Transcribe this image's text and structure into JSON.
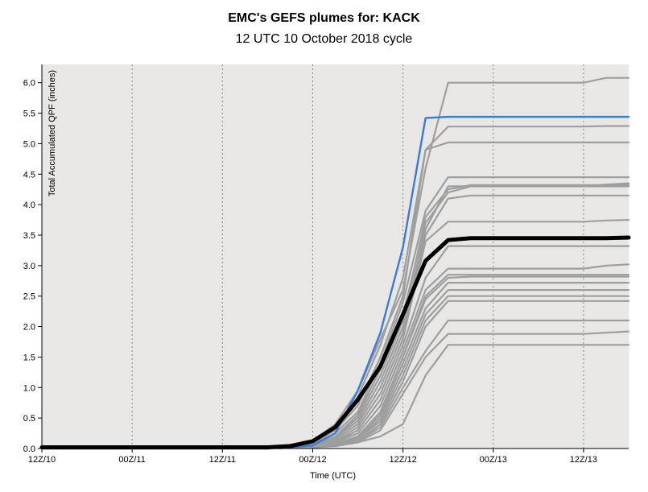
{
  "header": {
    "title": "EMC's GEFS plumes for: KACK",
    "subtitle": "12 UTC 10 October 2018 cycle"
  },
  "colors": {
    "plot_background": "#e8e7e6",
    "member_line": "#9e9e9e",
    "mean_line": "#000000",
    "highlight_line": "#3a7bd5",
    "gridline": "#888888"
  },
  "chart_data": {
    "type": "line",
    "title": "EMC's GEFS plumes for: KACK",
    "subtitle": "12 UTC 10 October 2018 cycle",
    "xlabel": "Time (UTC)",
    "ylabel": "Total Accumulated QPF (inches)",
    "x_unit": "forecast hour",
    "xlim": [
      0,
      78
    ],
    "ylim": [
      0,
      6.3
    ],
    "grid": "vertical dotted at each tick label",
    "x_ticks": [
      {
        "x": 0,
        "label": "12Z/10"
      },
      {
        "x": 12,
        "label": "00Z/11"
      },
      {
        "x": 24,
        "label": "12Z/11"
      },
      {
        "x": 36,
        "label": "00Z/12"
      },
      {
        "x": 48,
        "label": "12Z/12"
      },
      {
        "x": 60,
        "label": "00Z/13"
      },
      {
        "x": 72,
        "label": "12Z/13"
      }
    ],
    "y_ticks": [
      {
        "y": 0,
        "label": "0.0"
      },
      {
        "y": 0.5,
        "label": "0.5"
      },
      {
        "y": 1.0,
        "label": "1.0"
      },
      {
        "y": 1.5,
        "label": "1.5"
      },
      {
        "y": 2.0,
        "label": "2.0"
      },
      {
        "y": 2.5,
        "label": "2.5"
      },
      {
        "y": 3.0,
        "label": "3.0"
      },
      {
        "y": 3.5,
        "label": "3.5"
      },
      {
        "y": 4.0,
        "label": "4.0"
      },
      {
        "y": 4.5,
        "label": "4.5"
      },
      {
        "y": 5.0,
        "label": "5.0"
      },
      {
        "y": 5.5,
        "label": "5.5"
      },
      {
        "y": 6.0,
        "label": "6.0"
      }
    ],
    "x": [
      0,
      3,
      6,
      9,
      12,
      15,
      18,
      21,
      24,
      27,
      30,
      33,
      36,
      39,
      42,
      45,
      48,
      51,
      54,
      57,
      60,
      63,
      66,
      69,
      72,
      75,
      78
    ],
    "series": [
      {
        "role": "member",
        "values": [
          0,
          0,
          0,
          0,
          0,
          0,
          0,
          0,
          0,
          0,
          0.01,
          0.03,
          0.12,
          0.4,
          0.95,
          1.8,
          2.6,
          4.6,
          6.0,
          6.0,
          6.0,
          6.0,
          6.0,
          6.0,
          6.0,
          6.08,
          6.08
        ]
      },
      {
        "role": "member",
        "values": [
          0,
          0,
          0,
          0,
          0,
          0,
          0,
          0,
          0,
          0,
          0.01,
          0.02,
          0.1,
          0.35,
          0.85,
          1.7,
          2.8,
          4.9,
          5.28,
          5.28,
          5.28,
          5.28,
          5.28,
          5.28,
          5.28,
          5.29,
          5.29
        ]
      },
      {
        "role": "member",
        "values": [
          0,
          0,
          0,
          0,
          0,
          0,
          0,
          0,
          0,
          0,
          0.01,
          0.02,
          0.08,
          0.3,
          0.7,
          1.5,
          2.5,
          4.9,
          5.02,
          5.02,
          5.02,
          5.02,
          5.02,
          5.02,
          5.02,
          5.02,
          5.02
        ]
      },
      {
        "role": "member",
        "values": [
          0,
          0,
          0,
          0,
          0,
          0,
          0,
          0,
          0,
          0,
          0,
          0.01,
          0.06,
          0.25,
          0.6,
          1.4,
          2.4,
          3.9,
          4.45,
          4.45,
          4.45,
          4.45,
          4.45,
          4.45,
          4.45,
          4.45,
          4.45
        ]
      },
      {
        "role": "member",
        "values": [
          0,
          0,
          0,
          0,
          0,
          0,
          0,
          0,
          0,
          0,
          0,
          0.01,
          0.05,
          0.2,
          0.5,
          1.2,
          2.1,
          3.8,
          4.25,
          4.32,
          4.32,
          4.32,
          4.32,
          4.32,
          4.32,
          4.32,
          4.32
        ]
      },
      {
        "role": "member",
        "values": [
          0,
          0,
          0,
          0,
          0,
          0,
          0,
          0,
          0,
          0,
          0,
          0.01,
          0.05,
          0.2,
          0.55,
          1.3,
          2.2,
          3.7,
          4.2,
          4.3,
          4.3,
          4.3,
          4.3,
          4.3,
          4.3,
          4.33,
          4.35
        ]
      },
      {
        "role": "member",
        "values": [
          0,
          0,
          0,
          0,
          0,
          0,
          0,
          0,
          0,
          0,
          0,
          0.01,
          0.04,
          0.18,
          0.45,
          1.1,
          2.0,
          3.6,
          4.3,
          4.3,
          4.3,
          4.3,
          4.3,
          4.3,
          4.3,
          4.3,
          4.3
        ]
      },
      {
        "role": "member",
        "values": [
          0,
          0,
          0,
          0,
          0,
          0,
          0,
          0,
          0,
          0,
          0,
          0.01,
          0.04,
          0.15,
          0.4,
          1.0,
          1.9,
          3.5,
          4.1,
          4.15,
          4.15,
          4.15,
          4.15,
          4.15,
          4.15,
          4.15,
          4.15
        ]
      },
      {
        "role": "member",
        "values": [
          0,
          0,
          0,
          0,
          0,
          0,
          0,
          0,
          0,
          0,
          0,
          0.01,
          0.03,
          0.12,
          0.35,
          0.9,
          1.8,
          3.4,
          3.72,
          3.72,
          3.72,
          3.72,
          3.72,
          3.72,
          3.72,
          3.74,
          3.75
        ]
      },
      {
        "role": "member",
        "values": [
          0,
          0,
          0,
          0,
          0,
          0,
          0,
          0,
          0,
          0,
          0,
          0.01,
          0.02,
          0.1,
          0.3,
          0.8,
          1.7,
          2.8,
          3.32,
          3.32,
          3.32,
          3.32,
          3.32,
          3.32,
          3.32,
          3.32,
          3.32
        ]
      },
      {
        "role": "member",
        "values": [
          0,
          0,
          0,
          0,
          0,
          0,
          0,
          0,
          0,
          0,
          0,
          0.01,
          0.02,
          0.1,
          0.25,
          0.7,
          1.6,
          2.6,
          2.95,
          2.95,
          2.95,
          2.95,
          2.95,
          2.95,
          2.95,
          3.0,
          3.02
        ]
      },
      {
        "role": "member",
        "values": [
          0,
          0,
          0,
          0,
          0,
          0,
          0,
          0,
          0,
          0,
          0,
          0.01,
          0.02,
          0.08,
          0.2,
          0.6,
          1.5,
          2.5,
          2.85,
          2.85,
          2.85,
          2.85,
          2.85,
          2.85,
          2.85,
          2.85,
          2.85
        ]
      },
      {
        "role": "member",
        "values": [
          0,
          0,
          0,
          0,
          0,
          0,
          0,
          0,
          0,
          0,
          0,
          0.01,
          0.02,
          0.08,
          0.2,
          0.6,
          1.5,
          2.45,
          2.8,
          2.82,
          2.82,
          2.82,
          2.82,
          2.82,
          2.82,
          2.82,
          2.82
        ]
      },
      {
        "role": "member",
        "values": [
          0,
          0,
          0,
          0,
          0,
          0,
          0,
          0,
          0,
          0,
          0,
          0.01,
          0.02,
          0.07,
          0.18,
          0.55,
          1.4,
          2.3,
          2.72,
          2.72,
          2.72,
          2.72,
          2.72,
          2.72,
          2.72,
          2.72,
          2.72
        ]
      },
      {
        "role": "member",
        "values": [
          0,
          0,
          0,
          0,
          0,
          0,
          0,
          0,
          0,
          0,
          0,
          0.01,
          0.02,
          0.06,
          0.15,
          0.5,
          1.3,
          2.2,
          2.6,
          2.6,
          2.6,
          2.6,
          2.6,
          2.6,
          2.6,
          2.6,
          2.6
        ]
      },
      {
        "role": "member",
        "values": [
          0,
          0,
          0,
          0,
          0,
          0,
          0,
          0,
          0,
          0,
          0,
          0.01,
          0.02,
          0.06,
          0.15,
          0.45,
          1.2,
          2.1,
          2.5,
          2.5,
          2.5,
          2.5,
          2.5,
          2.5,
          2.5,
          2.5,
          2.5
        ]
      },
      {
        "role": "member",
        "values": [
          0,
          0,
          0,
          0,
          0,
          0,
          0,
          0,
          0,
          0,
          0,
          0.01,
          0.02,
          0.05,
          0.12,
          0.4,
          1.1,
          2.0,
          2.42,
          2.42,
          2.42,
          2.42,
          2.42,
          2.42,
          2.42,
          2.42,
          2.42
        ]
      },
      {
        "role": "member",
        "values": [
          0,
          0,
          0,
          0,
          0,
          0,
          0,
          0,
          0,
          0,
          0,
          0.01,
          0.02,
          0.05,
          0.12,
          0.35,
          1.0,
          1.6,
          2.1,
          2.1,
          2.1,
          2.1,
          2.1,
          2.1,
          2.1,
          2.1,
          2.1
        ]
      },
      {
        "role": "member",
        "values": [
          0,
          0,
          0,
          0,
          0,
          0,
          0,
          0,
          0,
          0,
          0,
          0.01,
          0.02,
          0.04,
          0.1,
          0.3,
          0.9,
          1.5,
          1.88,
          1.88,
          1.88,
          1.88,
          1.88,
          1.88,
          1.88,
          1.9,
          1.92
        ]
      },
      {
        "role": "member",
        "values": [
          0,
          0,
          0,
          0,
          0,
          0,
          0,
          0,
          0,
          0,
          0,
          0.01,
          0.02,
          0.04,
          0.1,
          0.2,
          0.4,
          1.2,
          1.7,
          1.7,
          1.7,
          1.7,
          1.7,
          1.7,
          1.7,
          1.7,
          1.7
        ]
      },
      {
        "role": "highlight",
        "values": [
          0.02,
          0.02,
          0.02,
          0.02,
          0.02,
          0.02,
          0.02,
          0.02,
          0.02,
          0.02,
          0.02,
          0.02,
          0.05,
          0.25,
          0.95,
          1.9,
          3.3,
          5.42,
          5.44,
          5.44,
          5.44,
          5.44,
          5.44,
          5.44,
          5.44,
          5.44,
          5.44
        ]
      },
      {
        "role": "mean",
        "values": [
          0.02,
          0.02,
          0.02,
          0.02,
          0.02,
          0.02,
          0.02,
          0.02,
          0.02,
          0.02,
          0.02,
          0.04,
          0.12,
          0.35,
          0.8,
          1.35,
          2.2,
          3.08,
          3.42,
          3.45,
          3.45,
          3.45,
          3.45,
          3.45,
          3.45,
          3.45,
          3.46
        ]
      }
    ]
  }
}
